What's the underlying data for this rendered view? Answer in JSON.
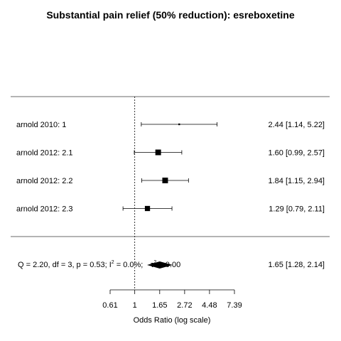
{
  "chart_data": {
    "type": "forest",
    "title": "Substantial pain relief (50% reduction): esreboxetine",
    "xlabel": "Odds Ratio (log scale)",
    "x_scale": "log",
    "null_value": 1,
    "ticks": [
      "0.61",
      "1",
      "1.65",
      "2.72",
      "4.48",
      "7.39"
    ],
    "xlim": [
      0.61,
      7.39
    ],
    "studies": [
      {
        "label": "arnold 2010: 1",
        "or": 2.44,
        "lower": 1.14,
        "upper": 5.22,
        "text": "2.44 [1.14, 5.22]",
        "weight": 0.05
      },
      {
        "label": "arnold 2012: 2.1",
        "or": 1.6,
        "lower": 0.99,
        "upper": 2.57,
        "text": "1.60 [0.99, 2.57]",
        "weight": 0.85
      },
      {
        "label": "arnold 2012: 2.2",
        "or": 1.84,
        "lower": 1.15,
        "upper": 2.94,
        "text": "1.84 [1.15, 2.94]",
        "weight": 0.85
      },
      {
        "label": "arnold 2012: 2.3",
        "or": 1.29,
        "lower": 0.79,
        "upper": 2.11,
        "text": "1.29 [0.79, 2.11]",
        "weight": 0.75
      }
    ],
    "summary": {
      "label": "Q = 2.20, df = 3, p = 0.53; I",
      "label_sup": "2",
      "label_end": " = 0.0%;",
      "tau_label": "τ",
      "tau_sup": "2",
      "tau_value": " = 0.00",
      "or": 1.65,
      "lower": 1.28,
      "upper": 2.14,
      "text": "1.65 [1.28, 2.14]"
    }
  }
}
